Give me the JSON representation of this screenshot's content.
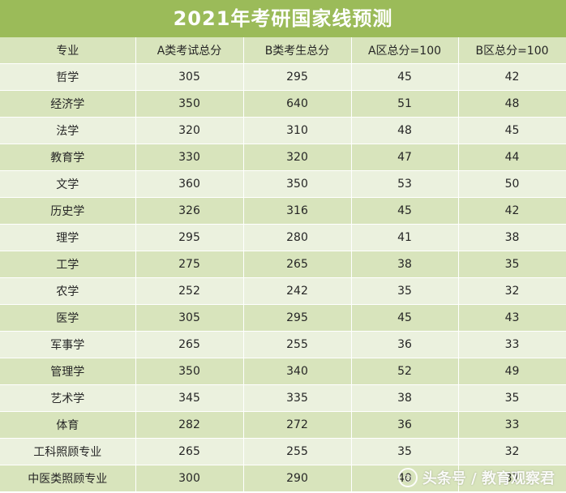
{
  "title": "2021年考研国家线预测",
  "headers": [
    "专业",
    "A类考试总分",
    "B类考生总分",
    "A区总分=100",
    "B区总分=100"
  ],
  "rows": [
    [
      "哲学",
      "305",
      "295",
      "45",
      "42"
    ],
    [
      "经济学",
      "350",
      "640",
      "51",
      "48"
    ],
    [
      "法学",
      "320",
      "310",
      "48",
      "45"
    ],
    [
      "教育学",
      "330",
      "320",
      "47",
      "44"
    ],
    [
      "文学",
      "360",
      "350",
      "53",
      "50"
    ],
    [
      "历史学",
      "326",
      "316",
      "45",
      "42"
    ],
    [
      "理学",
      "295",
      "280",
      "41",
      "38"
    ],
    [
      "工学",
      "275",
      "265",
      "38",
      "35"
    ],
    [
      "农学",
      "252",
      "242",
      "35",
      "32"
    ],
    [
      "医学",
      "305",
      "295",
      "45",
      "43"
    ],
    [
      "军事学",
      "265",
      "255",
      "36",
      "33"
    ],
    [
      "管理学",
      "350",
      "340",
      "52",
      "49"
    ],
    [
      "艺术学",
      "345",
      "335",
      "38",
      "35"
    ],
    [
      "体育",
      "282",
      "272",
      "36",
      "33"
    ],
    [
      "工科照顾专业",
      "265",
      "255",
      "35",
      "32"
    ],
    [
      "中医类照顾专业",
      "300",
      "290",
      "40",
      "37"
    ]
  ],
  "watermark": {
    "text": "头条号 / 教育观察君",
    "icon": "toutiao-logo-icon"
  },
  "colors": {
    "title_bg": "#9bbb59",
    "header_bg": "#d8e4bc",
    "row_light": "#ebf1de",
    "row_dark": "#d8e4bc"
  }
}
